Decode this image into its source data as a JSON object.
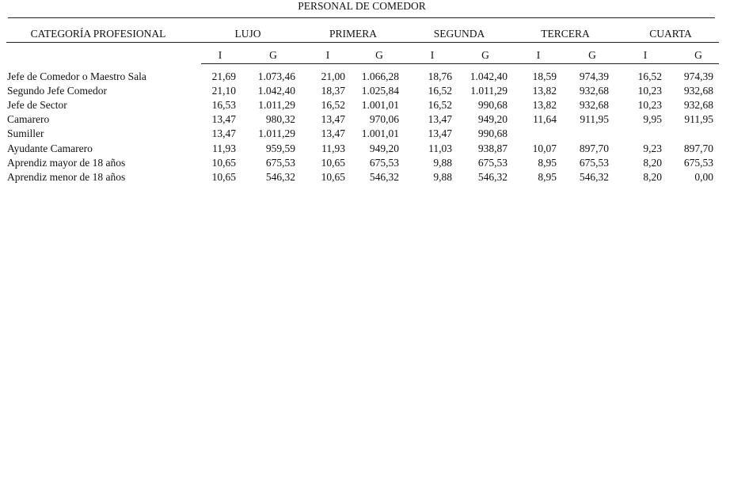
{
  "title": "PERSONAL DE COMEDOR",
  "header": {
    "category": "CATEGORÍA PROFESIONAL",
    "groups": [
      "LUJO",
      "PRIMERA",
      "SEGUNDA",
      "TERCERA",
      "CUARTA"
    ],
    "sub": [
      "I",
      "G"
    ]
  },
  "rows": [
    {
      "name": "Jefe de Comedor o Maestro Sala",
      "values": [
        "21,69",
        "1.073,46",
        "21,00",
        "1.066,28",
        "18,76",
        "1.042,40",
        "18,59",
        "974,39",
        "16,52",
        "974,39"
      ]
    },
    {
      "name": "Segundo Jefe Comedor",
      "values": [
        "21,10",
        "1.042,40",
        "18,37",
        "1.025,84",
        "16,52",
        "1.011,29",
        "13,82",
        "932,68",
        "10,23",
        "932,68"
      ]
    },
    {
      "name": "Jefe de Sector",
      "values": [
        "16,53",
        "1.011,29",
        "16,52",
        "1.001,01",
        "16,52",
        "990,68",
        "13,82",
        "932,68",
        "10,23",
        "932,68"
      ]
    },
    {
      "name": "Camarero",
      "values": [
        "13,47",
        "980,32",
        "13,47",
        "970,06",
        "13,47",
        "949,20",
        "11,64",
        "911,95",
        "9,95",
        "911,95"
      ]
    },
    {
      "name": "Sumiller",
      "values": [
        "13,47",
        "1.011,29",
        "13,47",
        "1.001,01",
        "13,47",
        "990,68",
        "",
        "",
        "",
        ""
      ]
    },
    {
      "name": "Ayudante Camarero",
      "values": [
        "11,93",
        "959,59",
        "11,93",
        "949,20",
        "11,03",
        "938,87",
        "10,07",
        "897,70",
        "9,23",
        "897,70"
      ]
    },
    {
      "name": "Aprendiz mayor de 18 años",
      "values": [
        "10,65",
        "675,53",
        "10,65",
        "675,53",
        "9,88",
        "675,53",
        "8,95",
        "675,53",
        "8,20",
        "675,53"
      ]
    },
    {
      "name": "Aprendiz menor de 18 años",
      "values": [
        "10,65",
        "546,32",
        "10,65",
        "546,32",
        "9,88",
        "546,32",
        "8,95",
        "546,32",
        "8,20",
        "0,00"
      ]
    }
  ]
}
